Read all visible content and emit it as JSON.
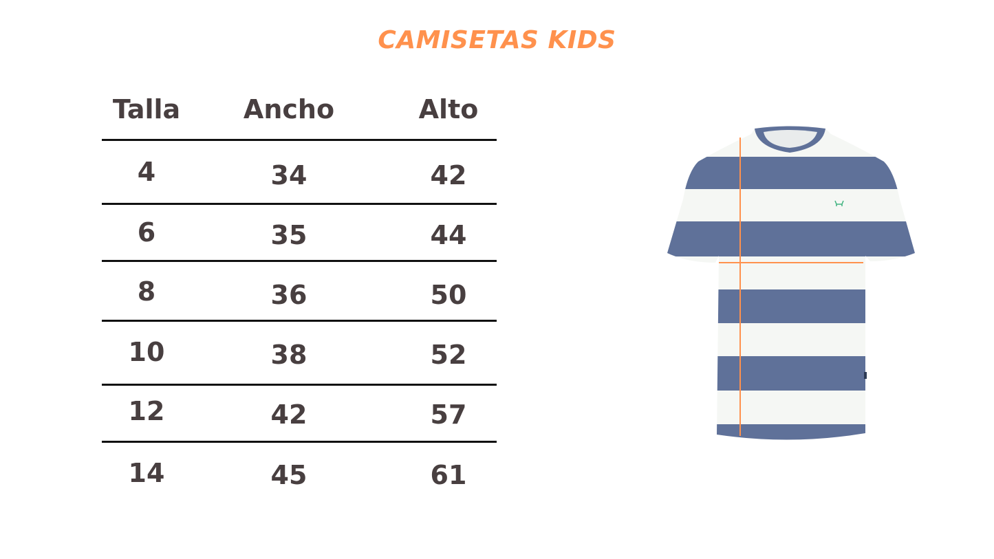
{
  "title": "CAMISETAS KIDS",
  "table": {
    "headers": [
      "Talla",
      "Ancho",
      "Alto"
    ],
    "rows": [
      [
        "4",
        "34",
        "42"
      ],
      [
        "6",
        "35",
        "44"
      ],
      [
        "8",
        "36",
        "50"
      ],
      [
        "10",
        "38",
        "52"
      ],
      [
        "12",
        "42",
        "57"
      ],
      [
        "14",
        "45",
        "61"
      ]
    ]
  },
  "colors": {
    "title": "#ff914d",
    "text": "#483f40",
    "shirt_stripe": "#5f7199",
    "shirt_white": "#f5f7f4",
    "measure_line": "#ff914d",
    "logo": "#3fb37f"
  },
  "image": {
    "subject": "striped t-shirt",
    "icon": "crab-logo-icon"
  }
}
